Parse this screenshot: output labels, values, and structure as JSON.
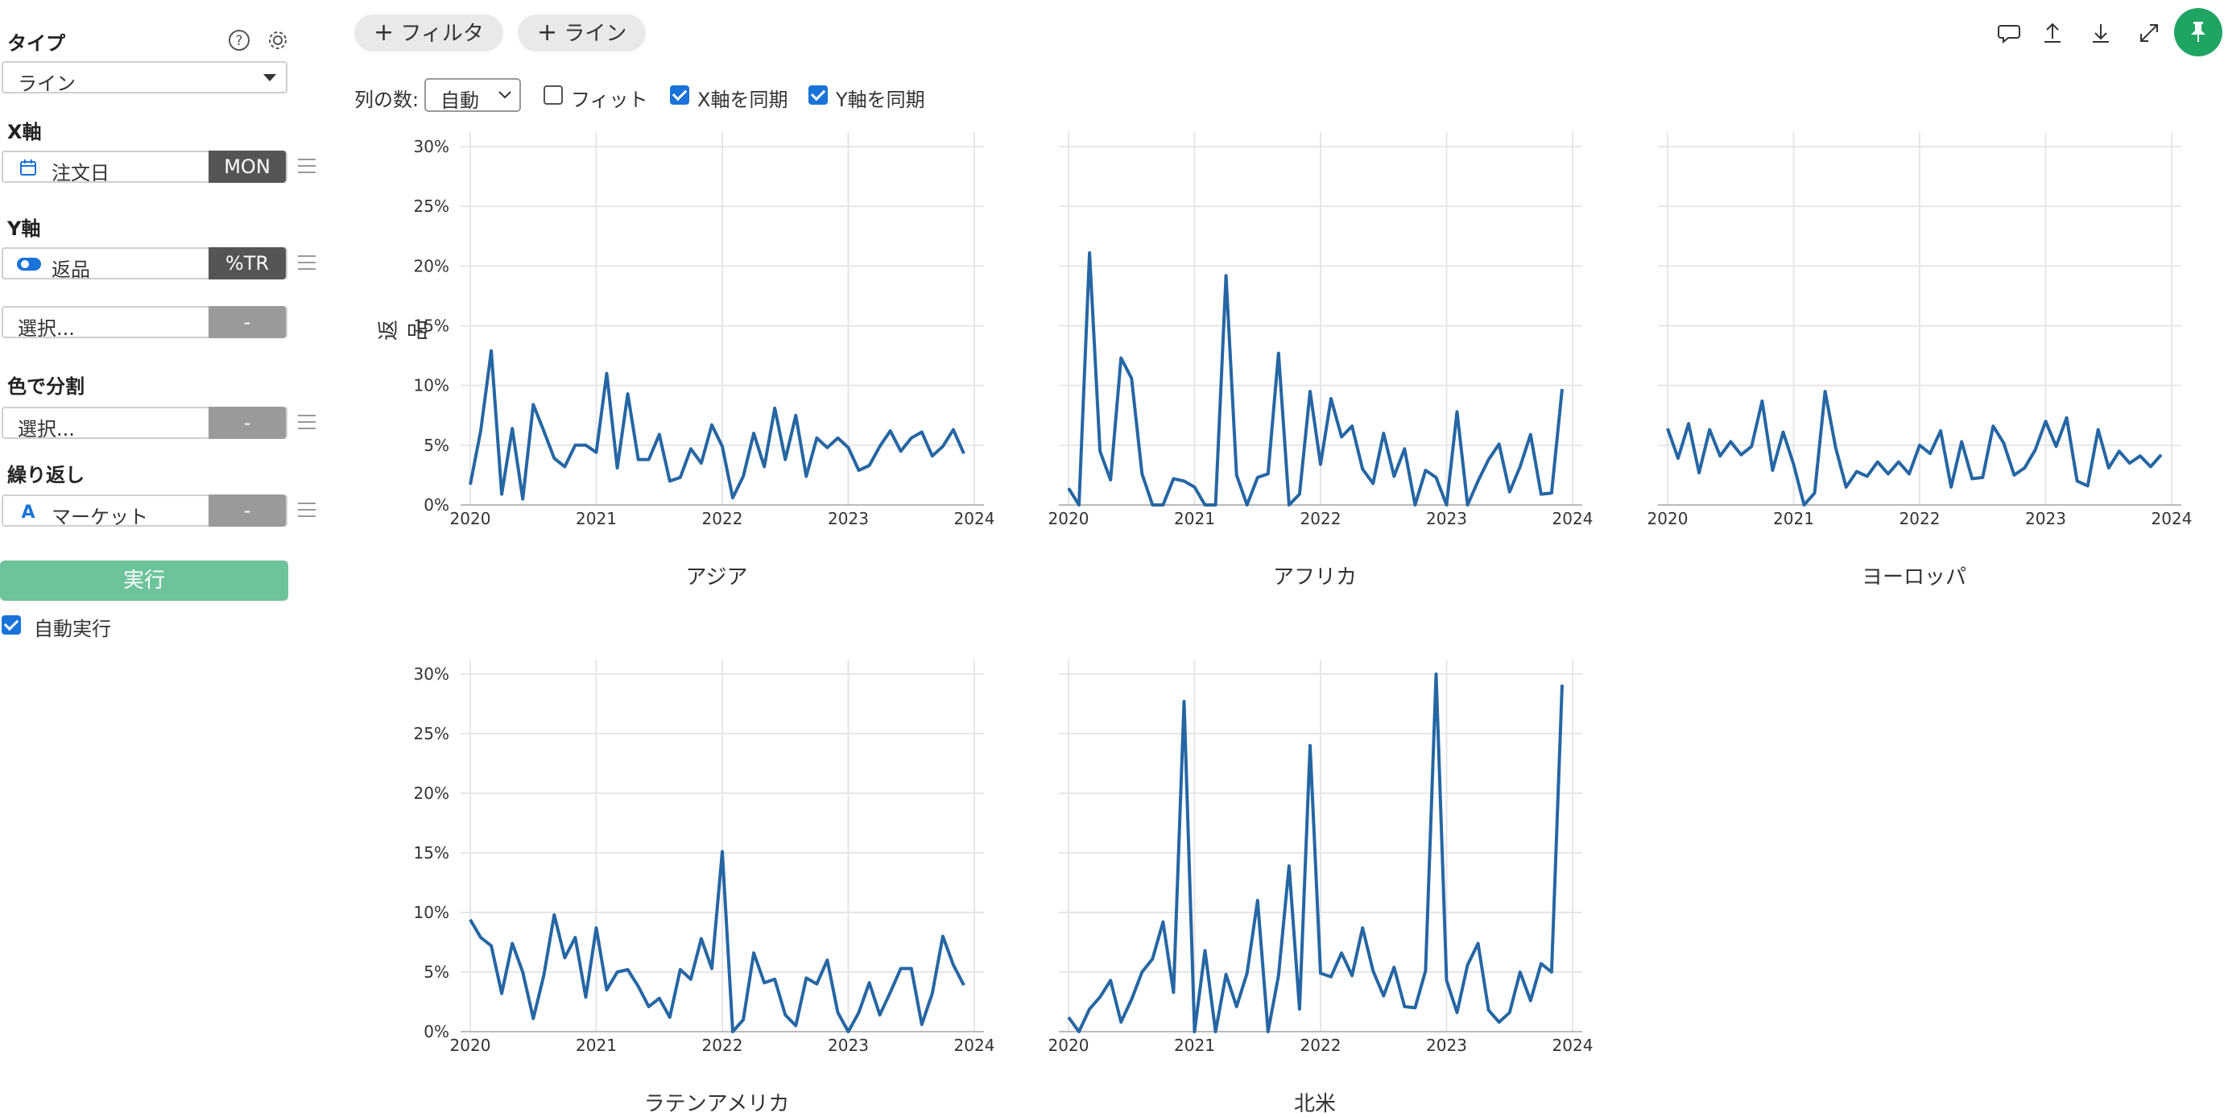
{
  "sidebar": {
    "type_label": "タイプ",
    "type_value": "ライン",
    "x_axis_label": "X軸",
    "x_field": "注文日",
    "x_agg": "MON",
    "y_axis_label": "Y軸",
    "y_field": "返品",
    "y_agg": "%TR",
    "y_extra_placeholder": "選択...",
    "y_extra_agg": "-",
    "color_label": "色で分割",
    "color_placeholder": "選択...",
    "color_agg": "-",
    "repeat_label": "繰り返し",
    "repeat_field": "マーケット",
    "repeat_agg": "-",
    "run_label": "実行",
    "auto_run_label": "自動実行"
  },
  "toolbar": {
    "filter_label": "フィルタ",
    "line_label": "ライン",
    "columns_label": "列の数:",
    "columns_value": "自動",
    "fit_label": "フィット",
    "sync_x_label": "X軸を同期",
    "sync_y_label": "Y軸を同期"
  },
  "chart_data": [
    {
      "type": "line",
      "title": "アジア",
      "ylabel": "返品",
      "x_ticks": [
        "2020",
        "2021",
        "2022",
        "2023",
        "2024"
      ],
      "y_ticks": [
        "0%",
        "5%",
        "10%",
        "15%",
        "20%",
        "25%",
        "30%"
      ],
      "ylim": [
        0,
        30
      ],
      "xlim": [
        "2020-01",
        "2024-01"
      ],
      "x_start": "2020-01",
      "x_step": "1 month",
      "values": [
        1.7,
        6.2,
        12.9,
        0.9,
        6.4,
        0.5,
        8.4,
        6.2,
        3.9,
        3.2,
        5.0,
        5.0,
        4.4,
        11.0,
        3.1,
        9.3,
        3.8,
        3.8,
        5.9,
        2.0,
        2.3,
        4.7,
        3.5,
        6.7,
        4.9,
        0.6,
        2.4,
        6.0,
        3.2,
        8.1,
        3.8,
        7.5,
        2.4,
        5.6,
        4.8,
        5.6,
        4.8,
        2.9,
        3.3,
        4.9,
        6.2,
        4.5,
        5.6,
        6.1,
        4.1,
        4.9,
        6.3,
        4.3
      ]
    },
    {
      "type": "line",
      "title": "アフリカ",
      "x_ticks": [
        "2020",
        "2021",
        "2022",
        "2023",
        "2024"
      ],
      "y_ticks": [
        "0%",
        "5%",
        "10%",
        "15%",
        "20%",
        "25%",
        "30%"
      ],
      "ylim": [
        0,
        30
      ],
      "xlim": [
        "2020-01",
        "2024-01"
      ],
      "x_start": "2020-01",
      "x_step": "1 month",
      "values": [
        1.4,
        0,
        21.1,
        4.5,
        2.1,
        12.3,
        10.6,
        2.6,
        0,
        0,
        2.2,
        2.0,
        1.5,
        0,
        0,
        19.2,
        2.5,
        0,
        2.3,
        2.6,
        12.7,
        0,
        0.9,
        9.5,
        3.4,
        8.9,
        5.7,
        6.6,
        3.0,
        1.8,
        6.0,
        2.4,
        4.7,
        0,
        2.9,
        2.3,
        0,
        7.8,
        0,
        2.0,
        3.8,
        5.1,
        1.1,
        3.2,
        5.9,
        0.9,
        1.0,
        9.7
      ]
    },
    {
      "type": "line",
      "title": "ヨーロッパ",
      "x_ticks": [
        "2020",
        "2021",
        "2022",
        "2023",
        "2024"
      ],
      "y_ticks": [
        "0%",
        "5%",
        "10%",
        "15%",
        "20%",
        "25%",
        "30%"
      ],
      "ylim": [
        0,
        30
      ],
      "xlim": [
        "2020-01",
        "2024-01"
      ],
      "x_start": "2020-01",
      "x_step": "1 month",
      "values": [
        6.4,
        3.9,
        6.8,
        2.7,
        6.3,
        4.1,
        5.3,
        4.2,
        4.9,
        8.7,
        2.9,
        6.1,
        3.4,
        0,
        1.0,
        9.5,
        4.8,
        1.5,
        2.8,
        2.4,
        3.6,
        2.6,
        3.6,
        2.6,
        5.0,
        4.3,
        6.2,
        1.5,
        5.3,
        2.2,
        2.3,
        6.6,
        5.2,
        2.5,
        3.1,
        4.6,
        7.0,
        4.9,
        7.3,
        2.0,
        1.6,
        6.3,
        3.1,
        4.5,
        3.5,
        4.1,
        3.2,
        4.2
      ]
    },
    {
      "type": "line",
      "title": "ラテンアメリカ",
      "x_ticks": [
        "2020",
        "2021",
        "2022",
        "2023",
        "2024"
      ],
      "y_ticks": [
        "0%",
        "5%",
        "10%",
        "15%",
        "20%",
        "25%",
        "30%"
      ],
      "ylim": [
        0,
        30
      ],
      "xlim": [
        "2020-01",
        "2024-01"
      ],
      "x_start": "2020-01",
      "x_step": "1 month",
      "values": [
        9.4,
        7.9,
        7.2,
        3.2,
        7.4,
        5.0,
        1.1,
        4.7,
        9.8,
        6.2,
        7.9,
        2.9,
        8.7,
        3.5,
        5.0,
        5.2,
        3.8,
        2.1,
        2.8,
        1.2,
        5.2,
        4.4,
        7.8,
        5.3,
        15.1,
        0,
        1.0,
        6.6,
        4.1,
        4.4,
        1.4,
        0.5,
        4.5,
        4.0,
        6.0,
        1.6,
        0,
        1.6,
        4.1,
        1.4,
        3.3,
        5.3,
        5.3,
        0.6,
        3.2,
        8.0,
        5.6,
        3.9
      ]
    },
    {
      "type": "line",
      "title": "北米",
      "x_ticks": [
        "2020",
        "2021",
        "2022",
        "2023",
        "2024"
      ],
      "y_ticks": [
        "0%",
        "5%",
        "10%",
        "15%",
        "20%",
        "25%",
        "30%"
      ],
      "ylim": [
        0,
        30
      ],
      "xlim": [
        "2020-01",
        "2024-01"
      ],
      "x_start": "2020-01",
      "x_step": "1 month",
      "values": [
        1.2,
        0,
        1.9,
        2.9,
        4.3,
        0.8,
        2.7,
        5.0,
        6.1,
        9.2,
        3.3,
        27.7,
        0,
        6.8,
        0,
        4.8,
        2.1,
        4.9,
        11.0,
        0,
        4.7,
        13.9,
        1.9,
        24.0,
        4.9,
        4.6,
        6.6,
        4.7,
        8.7,
        5.1,
        3.0,
        5.4,
        2.1,
        2.0,
        5.1,
        30.0,
        4.3,
        1.6,
        5.6,
        7.4,
        1.8,
        0.8,
        1.6,
        5.0,
        2.6,
        5.7,
        5.0,
        29.1
      ]
    }
  ],
  "colors": {
    "line": "#2566a3",
    "grid": "#e6e6e6",
    "run": "#6dc49a",
    "pin": "#1fa463",
    "check": "#1a73d9"
  },
  "icons": [
    "help-icon",
    "gear-icon",
    "calendar-icon",
    "toggle-icon",
    "text-type-icon",
    "comment-icon",
    "upload-icon",
    "download-icon",
    "expand-icon",
    "pin-icon"
  ]
}
